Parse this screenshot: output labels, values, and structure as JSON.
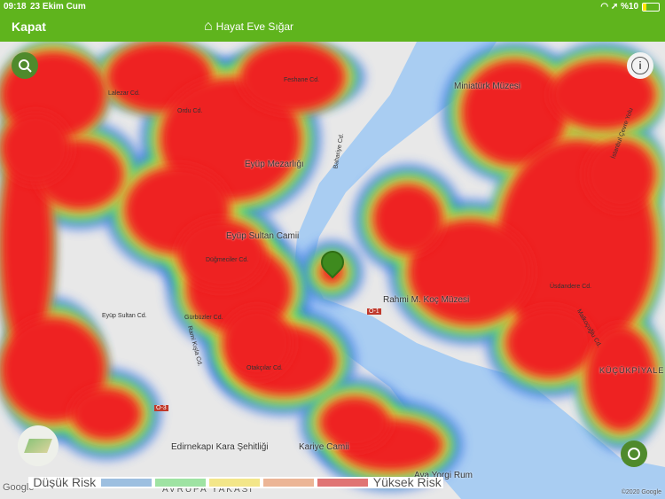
{
  "status_bar": {
    "time": "09:18",
    "date": "23 Ekim Cum",
    "battery": "%10"
  },
  "header": {
    "close_label": "Kapat",
    "title": "Hayat Eve Sığar"
  },
  "map": {
    "places": [
      "Miniatürk Müzesi",
      "Eyüp Mezarlığı",
      "Eyüp Sultan Camii",
      "Rahmi M. Koç Müzesi",
      "Edirnekapı Kara Şehitliği",
      "Kariye Camii",
      "Aya Yorgi Rum",
      "AVRUPA YAKASI",
      "KÜÇÜKPİYALE"
    ],
    "roads": [
      "Eyüp Sultan Cd.",
      "Rami Kışla Cd.",
      "İstanbul Çevre Yolu",
      "Üsdandere Cd.",
      "Otakçılar Cd.",
      "Gürbüzler Cd.",
      "Düğmeciler Cd.",
      "Bahariye Cd.",
      "Ordu Cd.",
      "Lalezar Cd.",
      "Feshane Cd.",
      "Malkoçoğlu Cd.",
      "O-1",
      "O-3"
    ],
    "attribution_left": "Google",
    "attribution_right": "©2020 Google"
  },
  "legend": {
    "low_label": "Düşük Risk",
    "high_label": "Yüksek Risk",
    "colors": [
      "#9dbfe0",
      "#9fe3a3",
      "#f3e689",
      "#ecb596",
      "#e07474"
    ]
  },
  "heat_colors": {
    "high": "#ee2222",
    "mid": "#e9e93a",
    "low": "#3fd47a",
    "min": "#3a6cf0"
  }
}
